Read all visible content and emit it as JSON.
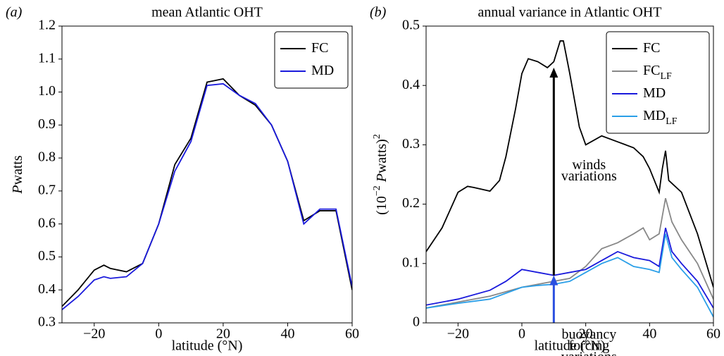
{
  "chart_data": [
    {
      "type": "line",
      "panel": "(a)",
      "title": "mean Atlantic OHT",
      "xlabel": "latitude (°N)",
      "ylabel": [
        {
          "text": "P",
          "italic": true
        },
        {
          "text": "watts"
        }
      ],
      "xlim": [
        -30,
        60
      ],
      "ylim": [
        0.3,
        1.2
      ],
      "xticks": [
        {
          "value": -20,
          "label": "−20"
        },
        0,
        20,
        40,
        60
      ],
      "yticks": [
        0.3,
        0.4,
        0.5,
        0.6,
        0.7,
        0.8,
        0.9,
        {
          "value": 1,
          "label": "1.0"
        },
        1.1,
        1.2
      ],
      "legend": "upper right",
      "series": [
        {
          "name": "FC",
          "color": "#000000",
          "x": [
            -30,
            -25,
            -20,
            -17,
            -15,
            -10,
            -5,
            0,
            5,
            10,
            15,
            20,
            25,
            30,
            35,
            40,
            45,
            50,
            55,
            60
          ],
          "values": [
            0.35,
            0.4,
            0.46,
            0.475,
            0.465,
            0.455,
            0.48,
            0.6,
            0.78,
            0.86,
            1.03,
            1.04,
            0.99,
            0.96,
            0.9,
            0.79,
            0.61,
            0.64,
            0.64,
            0.4
          ]
        },
        {
          "name": "MD",
          "color": "#1a1adc",
          "x": [
            -30,
            -25,
            -20,
            -17,
            -15,
            -10,
            -5,
            0,
            5,
            10,
            15,
            20,
            25,
            30,
            35,
            40,
            45,
            50,
            55,
            60
          ],
          "values": [
            0.34,
            0.38,
            0.43,
            0.44,
            0.435,
            0.44,
            0.48,
            0.6,
            0.76,
            0.85,
            1.02,
            1.025,
            0.99,
            0.965,
            0.9,
            0.79,
            0.6,
            0.645,
            0.645,
            0.41
          ]
        }
      ]
    },
    {
      "type": "line",
      "panel": "(b)",
      "title": "annual variance in Atlantic OHT",
      "xlabel": "latitude (°N)",
      "ylabel": [
        {
          "text": "(10"
        },
        {
          "text": "−2",
          "sup": true
        },
        {
          "text": " "
        },
        {
          "text": "P",
          "italic": true
        },
        {
          "text": "watts)"
        },
        {
          "text": "2",
          "sup": true
        }
      ],
      "xlim": [
        -30,
        60
      ],
      "ylim": [
        0,
        0.5
      ],
      "xticks": [
        {
          "value": -20,
          "label": "−20"
        },
        0,
        20,
        40,
        60
      ],
      "yticks": [
        0,
        0.1,
        0.2,
        0.3,
        0.4,
        0.5
      ],
      "legend": "upper right",
      "annotations": [
        {
          "lines": [
            "winds",
            "variations"
          ],
          "color": "#000000",
          "x": 10,
          "from": 0.08,
          "to": 0.43
        },
        {
          "lines": [
            "buoyancy",
            "forcing",
            "variations"
          ],
          "color": "#2a4fe0",
          "x": 10,
          "from": 0,
          "to": 0.08
        }
      ],
      "series": [
        {
          "name": "FC",
          "color": "#000000",
          "x": [
            -30,
            -25,
            -20,
            -17,
            -15,
            -10,
            -7,
            -5,
            -2,
            0,
            2,
            5,
            8,
            10,
            12,
            13,
            15,
            18,
            20,
            25,
            30,
            35,
            38,
            40,
            43,
            44,
            45,
            46,
            50,
            55,
            60
          ],
          "values": [
            0.12,
            0.16,
            0.22,
            0.23,
            0.228,
            0.222,
            0.24,
            0.28,
            0.36,
            0.42,
            0.445,
            0.44,
            0.43,
            0.44,
            0.475,
            0.475,
            0.42,
            0.33,
            0.3,
            0.315,
            0.305,
            0.295,
            0.28,
            0.26,
            0.22,
            0.26,
            0.29,
            0.24,
            0.22,
            0.15,
            0.06
          ]
        },
        {
          "name": "FC",
          "subscript": "LF",
          "color": "#888888",
          "x": [
            -30,
            -20,
            -10,
            0,
            5,
            10,
            15,
            20,
            25,
            30,
            35,
            38,
            40,
            43,
            45,
            47,
            50,
            55,
            60
          ],
          "values": [
            0.025,
            0.035,
            0.045,
            0.06,
            0.065,
            0.07,
            0.075,
            0.095,
            0.125,
            0.135,
            0.15,
            0.16,
            0.14,
            0.15,
            0.21,
            0.17,
            0.14,
            0.1,
            0.04
          ]
        },
        {
          "name": "MD",
          "color": "#1a1adc",
          "x": [
            -30,
            -20,
            -10,
            -5,
            0,
            5,
            10,
            15,
            20,
            25,
            30,
            35,
            40,
            43,
            45,
            47,
            50,
            55,
            60
          ],
          "values": [
            0.03,
            0.04,
            0.055,
            0.07,
            0.09,
            0.085,
            0.08,
            0.085,
            0.09,
            0.105,
            0.12,
            0.11,
            0.105,
            0.095,
            0.16,
            0.12,
            0.1,
            0.07,
            0.025
          ]
        },
        {
          "name": "MD",
          "subscript": "LF",
          "color": "#2a9fe8",
          "x": [
            -30,
            -20,
            -10,
            0,
            5,
            10,
            15,
            20,
            25,
            30,
            35,
            40,
            43,
            45,
            47,
            50,
            55,
            60
          ],
          "values": [
            0.025,
            0.033,
            0.04,
            0.06,
            0.063,
            0.065,
            0.07,
            0.085,
            0.1,
            0.11,
            0.095,
            0.09,
            0.085,
            0.15,
            0.11,
            0.09,
            0.06,
            0.01
          ]
        }
      ]
    }
  ]
}
